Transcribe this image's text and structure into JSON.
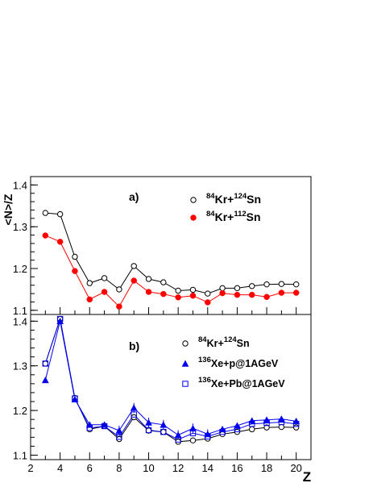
{
  "chart_data": [
    {
      "type": "line",
      "panel_label": "a)",
      "ylabel": "<N>/Z",
      "xlabel": "",
      "xlim": [
        2,
        21
      ],
      "ylim": [
        1.09,
        1.42
      ],
      "yticks": [
        1.1,
        1.2,
        1.3,
        1.4
      ],
      "ytick_labels": [
        "1.1",
        "1.2",
        "1.3",
        "1.4"
      ],
      "legend_position": "top-right",
      "series": [
        {
          "name": "84Kr+124Sn",
          "legend": {
            "sup1": "84",
            "base1": "Kr+",
            "sup2": "124",
            "base2": "Sn"
          },
          "marker": "open-circle",
          "color": "#000000",
          "x": [
            3,
            4,
            5,
            6,
            7,
            8,
            9,
            10,
            11,
            12,
            13,
            14,
            15,
            16,
            17,
            18,
            19,
            20
          ],
          "values": [
            1.333,
            1.33,
            1.228,
            1.165,
            1.177,
            1.15,
            1.206,
            1.175,
            1.167,
            1.147,
            1.149,
            1.14,
            1.153,
            1.153,
            1.158,
            1.162,
            1.163,
            1.162
          ]
        },
        {
          "name": "84Kr+112Sn",
          "legend": {
            "sup1": "84",
            "base1": "Kr+",
            "sup2": "112",
            "base2": "Sn"
          },
          "marker": "filled-circle",
          "color": "#ff0000",
          "x": [
            3,
            4,
            5,
            6,
            7,
            8,
            9,
            10,
            11,
            12,
            13,
            14,
            15,
            16,
            17,
            18,
            19,
            20
          ],
          "values": [
            1.279,
            1.264,
            1.194,
            1.126,
            1.144,
            1.109,
            1.171,
            1.144,
            1.139,
            1.131,
            1.135,
            1.119,
            1.141,
            1.137,
            1.137,
            1.132,
            1.142,
            1.142
          ]
        }
      ]
    },
    {
      "type": "line",
      "panel_label": "b)",
      "xlabel": "Z",
      "ylabel": "",
      "xlim": [
        2,
        21
      ],
      "ylim": [
        1.09,
        1.415
      ],
      "xticks": [
        2,
        4,
        6,
        8,
        10,
        12,
        14,
        16,
        18,
        20
      ],
      "xtick_labels": [
        "2",
        "4",
        "6",
        "8",
        "10",
        "12",
        "14",
        "16",
        "18",
        "20"
      ],
      "yticks": [
        1.1,
        1.2,
        1.3,
        1.4
      ],
      "ytick_labels": [
        "1.1",
        "1.2",
        "1.3",
        "1.4"
      ],
      "legend_position": "top-right",
      "series": [
        {
          "name": "84Kr+124Sn",
          "legend": {
            "sup1": "84",
            "base1": "Kr+",
            "sup2": "124",
            "base2": "Sn"
          },
          "marker": "open-circle",
          "color": "#000000",
          "x": [
            3,
            4,
            5,
            6,
            7,
            8,
            9,
            10,
            11,
            12,
            13,
            14,
            15,
            16,
            17,
            18,
            19,
            20
          ],
          "values": [
            1.305,
            1.405,
            1.228,
            1.158,
            1.165,
            1.136,
            1.185,
            1.155,
            1.152,
            1.13,
            1.133,
            1.137,
            1.147,
            1.152,
            1.158,
            1.162,
            1.163,
            1.162
          ]
        },
        {
          "name": "136Xe+p@1AGeV",
          "legend": {
            "sup1": "136",
            "base1": "Xe+p@1AGeV",
            "sup2": "",
            "base2": ""
          },
          "marker": "filled-triangle",
          "color": "#0000ee",
          "x": [
            3,
            4,
            5,
            6,
            7,
            8,
            9,
            10,
            11,
            12,
            13,
            14,
            15,
            16,
            17,
            18,
            19,
            20
          ],
          "values": [
            1.268,
            1.4,
            1.225,
            1.168,
            1.168,
            1.155,
            1.206,
            1.173,
            1.168,
            1.145,
            1.16,
            1.147,
            1.158,
            1.166,
            1.177,
            1.179,
            1.181,
            1.176
          ]
        },
        {
          "name": "136Xe+Pb@1AGeV",
          "legend": {
            "sup1": "136",
            "base1": "Xe+Pb@1AGeV",
            "sup2": "",
            "base2": ""
          },
          "marker": "open-square",
          "color": "#0000ee",
          "x": [
            3,
            4,
            5,
            6,
            7,
            8,
            9,
            10,
            11,
            12,
            13,
            14,
            15,
            16,
            17,
            18,
            19,
            20
          ],
          "values": [
            1.305,
            1.405,
            1.227,
            1.161,
            1.165,
            1.141,
            1.191,
            1.156,
            1.152,
            1.135,
            1.149,
            1.142,
            1.152,
            1.158,
            1.17,
            1.172,
            1.174,
            1.17
          ]
        }
      ]
    }
  ]
}
